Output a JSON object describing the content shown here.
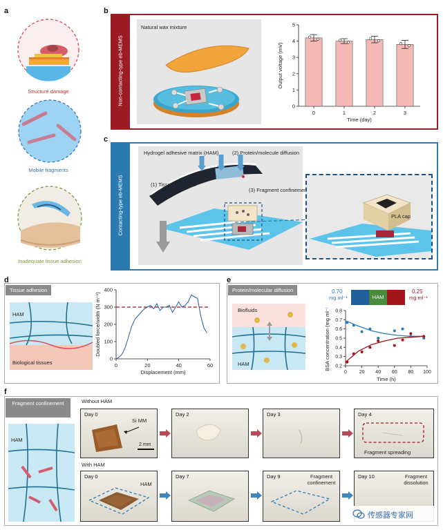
{
  "panels": {
    "a": {
      "label": "a",
      "captions": [
        "Structure damage",
        "Mobile fragments",
        "Inadequate tissue adhesion"
      ]
    },
    "b": {
      "label": "b",
      "side_title": "Non-contacting-type eb-MEMS",
      "illustration_label": "Natural wax mixture"
    },
    "c": {
      "label": "c",
      "side_title": "Contacting-type eb-MEMS",
      "ham_label": "Hydrogel adhesive matrix (HAM)",
      "step1": "(1) Tissue adhesion",
      "step2": "(2) Protein/molecule diffusion",
      "step3": "(3) Fragment confinement",
      "cap_label": "PLA cap"
    },
    "d": {
      "label": "d",
      "tag": "Tissue adhesion",
      "ham": "HAM",
      "tissue": "Biological tissues"
    },
    "e": {
      "label": "e",
      "tag": "Protein/molecular diffusion",
      "biofluids": "Biofluids",
      "ham": "HAM",
      "left_conc": "0.70",
      "right_conc": "0.25",
      "conc_unit": "mg ml⁻¹",
      "bar_label": "HAM"
    },
    "f": {
      "label": "f",
      "tag": "Fragment confinement",
      "ham": "HAM",
      "row1_title": "Without HAM",
      "row2_title": "With HAM",
      "row1_days": [
        "Day 0",
        "Day 2",
        "Day 3",
        "Day 4"
      ],
      "row2_days": [
        "Day 0",
        "Day 7",
        "Day 9",
        "Day 10"
      ],
      "si_mm": "Si MM",
      "scale": "2 mm",
      "ham_in_photo": "HAM",
      "spreading": "Fragment spreading",
      "confinement": "Fragment confinement",
      "dissolution": "Fragment dissolution"
    }
  },
  "watermark": "传感器专家网",
  "chart_data": [
    {
      "type": "bar",
      "categories": [
        "0",
        "1",
        "2",
        "3"
      ],
      "values": [
        4.2,
        4.0,
        4.1,
        3.8
      ],
      "errors": [
        0.2,
        0.15,
        0.2,
        0.25
      ],
      "xlabel": "Time (day)",
      "ylabel": "Output voltage (mV)",
      "ylim": [
        0,
        5
      ],
      "yticks": [
        0,
        1,
        2,
        3,
        4,
        5
      ],
      "bar_color": "#f4b9b5"
    },
    {
      "type": "line",
      "xlabel": "Displacement (mm)",
      "ylabel": "Doubled force/width (N m⁻¹)",
      "xlim": [
        0,
        60
      ],
      "ylim": [
        0,
        400
      ],
      "xticks": [
        0,
        20,
        40,
        60
      ],
      "yticks": [
        0,
        100,
        200,
        300,
        400
      ],
      "reference_line": 300,
      "x": [
        0,
        2,
        4,
        6,
        8,
        10,
        12,
        14,
        16,
        18,
        20,
        22,
        24,
        26,
        28,
        30,
        32,
        34,
        36,
        38,
        40,
        42,
        44,
        46,
        48,
        50,
        52,
        54,
        56,
        58
      ],
      "y": [
        0,
        10,
        30,
        70,
        130,
        190,
        230,
        250,
        270,
        290,
        300,
        310,
        290,
        320,
        280,
        300,
        300,
        310,
        270,
        300,
        330,
        300,
        310,
        330,
        370,
        360,
        350,
        250,
        180,
        150
      ],
      "line_color": "#1f5fa8",
      "reference_color": "#a3151a"
    },
    {
      "type": "scatter",
      "xlabel": "Time (h)",
      "ylabel": "BSA concentration (mg ml⁻¹)",
      "xlim": [
        0,
        100
      ],
      "ylim": [
        0.2,
        0.8
      ],
      "xticks": [
        0,
        20,
        40,
        60,
        80,
        100
      ],
      "yticks": [
        0.2,
        0.3,
        0.4,
        0.5,
        0.6,
        0.7,
        0.8
      ],
      "series": [
        {
          "color": "#2b7bb9",
          "x": [
            2,
            10,
            20,
            30,
            40,
            60,
            70,
            80,
            96
          ],
          "y": [
            0.67,
            0.64,
            0.57,
            0.6,
            0.5,
            0.58,
            0.6,
            0.52,
            0.5
          ],
          "fit_y": [
            0.69,
            0.63,
            0.58,
            0.55,
            0.53,
            0.52,
            0.52
          ]
        },
        {
          "color": "#a3151a",
          "x": [
            2,
            10,
            20,
            30,
            40,
            60,
            70,
            80,
            96
          ],
          "y": [
            0.24,
            0.33,
            0.35,
            0.4,
            0.47,
            0.42,
            0.48,
            0.55,
            0.52
          ],
          "fit_y": [
            0.24,
            0.36,
            0.43,
            0.47,
            0.5,
            0.51,
            0.52
          ]
        }
      ],
      "fit_x": [
        0,
        16,
        32,
        48,
        64,
        80,
        96
      ]
    }
  ]
}
